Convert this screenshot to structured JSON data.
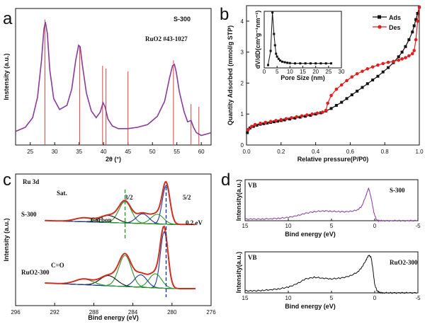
{
  "panels": [
    {
      "label": "a",
      "type": "line",
      "title": "S-300",
      "title_color": "#8a3a9a",
      "xlabel": "2θ (°)",
      "ylabel": "Instensity (a.u.)",
      "xlim": [
        22,
        62
      ],
      "ylim": [
        0,
        1
      ],
      "xticks": [
        25,
        30,
        35,
        40,
        45,
        50,
        55,
        60
      ],
      "series": [
        {
          "color": "#8a3a9a",
          "x": [
            22,
            24,
            25.5,
            26.5,
            27.3,
            27.8,
            28.1,
            28.5,
            29,
            29.8,
            31,
            32.5,
            33.5,
            34.3,
            34.9,
            35.2,
            35.7,
            36.5,
            37.5,
            38.5,
            39.3,
            39.9,
            40.3,
            40.9,
            41.8,
            43,
            45,
            47,
            49,
            51,
            52.5,
            53.5,
            54.1,
            54.5,
            54.9,
            55.5,
            56.5,
            57.2,
            57.9,
            58.4,
            59,
            60,
            61,
            62
          ],
          "y": [
            0.1,
            0.13,
            0.2,
            0.35,
            0.62,
            0.85,
            0.9,
            0.82,
            0.55,
            0.34,
            0.26,
            0.29,
            0.41,
            0.62,
            0.73,
            0.72,
            0.58,
            0.38,
            0.25,
            0.2,
            0.24,
            0.31,
            0.28,
            0.19,
            0.14,
            0.12,
            0.12,
            0.13,
            0.15,
            0.21,
            0.32,
            0.49,
            0.58,
            0.59,
            0.53,
            0.39,
            0.24,
            0.17,
            0.18,
            0.13,
            0.09,
            0.07,
            0.08,
            0.09
          ]
        }
      ],
      "ref_label": "RuO2 #43-1027",
      "ref_color": "#e04040",
      "ref_lines": [
        {
          "x": 28.0,
          "h": 0.92
        },
        {
          "x": 35.1,
          "h": 0.72
        },
        {
          "x": 39.8,
          "h": 0.58
        },
        {
          "x": 40.5,
          "h": 0.56
        },
        {
          "x": 45.0,
          "h": 0.54
        },
        {
          "x": 54.3,
          "h": 0.62
        },
        {
          "x": 57.9,
          "h": 0.3
        },
        {
          "x": 59.5,
          "h": 0.28
        }
      ]
    },
    {
      "label": "b",
      "type": "line",
      "xlabel": "Relative pressure(P/P0)",
      "ylabel": "Quantity Adsorbed (mmol/g STP)",
      "xlim": [
        0,
        1.0
      ],
      "ylim": [
        0,
        4.5
      ],
      "xticks": [
        0.0,
        0.2,
        0.4,
        0.6,
        0.8,
        1.0
      ],
      "yticks": [
        0,
        1,
        2,
        3,
        4
      ],
      "legend": [
        {
          "name": "Ads",
          "color": "#111111",
          "marker": "square"
        },
        {
          "name": "Des",
          "color": "#e02020",
          "marker": "circle"
        }
      ],
      "series": [
        {
          "name": "Ads",
          "color": "#111111",
          "x": [
            0.005,
            0.02,
            0.04,
            0.06,
            0.08,
            0.1,
            0.12,
            0.14,
            0.16,
            0.18,
            0.2,
            0.22,
            0.25,
            0.28,
            0.31,
            0.34,
            0.37,
            0.4,
            0.43,
            0.46,
            0.49,
            0.52,
            0.55,
            0.58,
            0.61,
            0.64,
            0.67,
            0.7,
            0.73,
            0.76,
            0.79,
            0.82,
            0.85,
            0.88,
            0.9,
            0.92,
            0.94,
            0.96,
            0.97,
            0.98,
            0.99,
            1.0
          ],
          "y": [
            0.4,
            0.55,
            0.6,
            0.64,
            0.67,
            0.69,
            0.71,
            0.73,
            0.75,
            0.77,
            0.79,
            0.81,
            0.84,
            0.87,
            0.9,
            0.93,
            0.96,
            1.0,
            1.04,
            1.1,
            1.18,
            1.28,
            1.38,
            1.5,
            1.62,
            1.74,
            1.86,
            1.98,
            2.1,
            2.22,
            2.36,
            2.5,
            2.66,
            2.85,
            3.0,
            3.18,
            3.4,
            3.65,
            3.85,
            4.05,
            4.25,
            4.45
          ]
        },
        {
          "name": "Des",
          "color": "#e02020",
          "x": [
            1.0,
            0.99,
            0.98,
            0.97,
            0.96,
            0.94,
            0.92,
            0.9,
            0.88,
            0.85,
            0.82,
            0.79,
            0.76,
            0.73,
            0.7,
            0.67,
            0.64,
            0.61,
            0.58,
            0.55,
            0.52,
            0.49,
            0.47,
            0.46,
            0.44,
            0.41,
            0.38,
            0.35,
            0.32,
            0.29,
            0.26,
            0.23,
            0.2,
            0.17,
            0.14,
            0.11,
            0.08,
            0.05,
            0.03,
            0.01
          ],
          "y": [
            4.45,
            4.0,
            3.4,
            3.05,
            2.95,
            2.88,
            2.82,
            2.78,
            2.74,
            2.7,
            2.67,
            2.63,
            2.58,
            2.52,
            2.46,
            2.38,
            2.3,
            2.2,
            2.08,
            1.94,
            1.8,
            1.6,
            1.35,
            1.12,
            1.06,
            1.03,
            1.0,
            0.97,
            0.94,
            0.91,
            0.88,
            0.85,
            0.82,
            0.79,
            0.76,
            0.73,
            0.7,
            0.66,
            0.6,
            0.5
          ]
        }
      ],
      "inset": {
        "xlabel": "Pore Size (nm)",
        "ylabel": "dV/dD(cm³g⁻¹nm⁻¹)",
        "xlim": [
          0,
          30
        ],
        "xticks": [
          0,
          5,
          10,
          15,
          20,
          25,
          30
        ],
        "ylim": [
          0,
          1
        ],
        "x": [
          1.5,
          2.5,
          3.2,
          3.8,
          4.2,
          4.6,
          5.0,
          5.6,
          6.2,
          7,
          8,
          9,
          10,
          12,
          14,
          16,
          18,
          20,
          22,
          24,
          26
        ],
        "y": [
          0.05,
          0.3,
          0.98,
          0.6,
          0.4,
          0.25,
          0.2,
          0.16,
          0.13,
          0.11,
          0.1,
          0.09,
          0.085,
          0.08,
          0.08,
          0.08,
          0.08,
          0.08,
          0.08,
          0.08,
          0.08
        ]
      }
    },
    {
      "label": "c",
      "type": "line",
      "xlabel": "Bind energy (eV)",
      "ylabel": "Intensity (a.u.)",
      "xlim": [
        296,
        276
      ],
      "xticks": [
        296,
        292,
        288,
        284,
        280,
        276
      ],
      "texts": {
        "core": "Ru 3d",
        "sat": "Sat.",
        "j32": "3/2",
        "j52": "5/2",
        "carbon": "Carbon",
        "shift": "0.2 eV",
        "co": "C=O",
        "top": "S-300",
        "bottom": "RuO2-300"
      }
    },
    {
      "label": "d",
      "type": "line",
      "xlabel": "Bind energy (eV)",
      "ylabel": "Intensity(a.u.)",
      "subplots": [
        {
          "tag": "VB",
          "name": "S-300",
          "color": "#8a3a9a",
          "xlim": [
            15,
            -5
          ],
          "xticks": [
            15,
            10,
            5,
            0,
            -5
          ],
          "x": [
            15,
            14,
            13,
            12,
            11,
            10,
            9,
            8,
            7,
            6,
            5,
            4,
            3,
            2,
            1.5,
            1.0,
            0.7,
            0.4,
            0.1,
            -0.2,
            -0.5,
            -1,
            -2,
            -3,
            -4,
            -5
          ],
          "y": [
            0.04,
            0.04,
            0.04,
            0.05,
            0.06,
            0.08,
            0.12,
            0.18,
            0.22,
            0.24,
            0.23,
            0.22,
            0.22,
            0.26,
            0.35,
            0.62,
            0.8,
            0.55,
            0.2,
            0.02,
            0,
            0,
            0,
            0,
            0,
            0
          ]
        },
        {
          "tag": "VB",
          "name": "RuO2-300",
          "color": "#111111",
          "xlim": [
            15,
            -5
          ],
          "xticks": [
            15,
            10,
            5,
            0,
            -5
          ],
          "x": [
            15,
            14,
            13,
            12,
            11,
            10,
            9,
            8,
            7,
            6,
            5,
            4,
            3,
            2,
            1.5,
            1.0,
            0.7,
            0.4,
            0.2,
            0.0,
            -0.3,
            -0.6,
            -1,
            -2,
            -3,
            -4,
            -5
          ],
          "y": [
            0.05,
            0.05,
            0.06,
            0.08,
            0.1,
            0.14,
            0.22,
            0.34,
            0.38,
            0.36,
            0.34,
            0.36,
            0.4,
            0.5,
            0.62,
            0.8,
            0.92,
            0.86,
            0.55,
            0.2,
            0.04,
            0.01,
            0,
            0,
            0,
            0,
            0
          ]
        }
      ]
    }
  ]
}
